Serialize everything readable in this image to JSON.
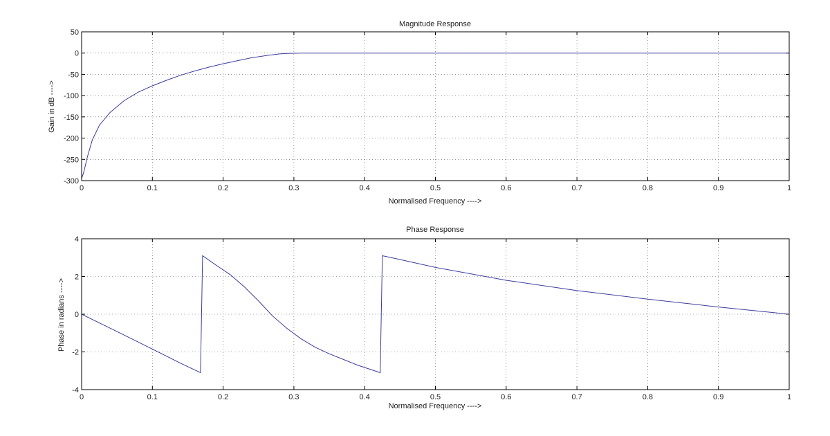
{
  "chart_data": [
    {
      "type": "line",
      "title": "Magnitude Response",
      "xlabel": "Normalised Frequency ---->",
      "ylabel": "Gain in dB ---->",
      "xlim": [
        0,
        1
      ],
      "ylim": [
        -300,
        50
      ],
      "xticks": [
        "0",
        "0.1",
        "0.2",
        "0.3",
        "0.4",
        "0.5",
        "0.6",
        "0.7",
        "0.8",
        "0.9",
        "1"
      ],
      "yticks": [
        "50",
        "0",
        "-50",
        "-100",
        "-150",
        "-200",
        "-250",
        "-300"
      ],
      "grid": true,
      "line_color": "#3b3b9e",
      "series": [
        {
          "x": [
            0,
            0.003,
            0.008,
            0.015,
            0.025,
            0.04,
            0.06,
            0.08,
            0.1,
            0.12,
            0.14,
            0.16,
            0.18,
            0.2,
            0.22,
            0.24,
            0.26,
            0.28,
            0.29,
            0.3,
            0.31,
            0.5,
            0.7,
            1.0
          ],
          "y": [
            -295,
            -280,
            -245,
            -205,
            -170,
            -140,
            -112,
            -92,
            -77,
            -64,
            -52,
            -42,
            -33,
            -25,
            -18,
            -11,
            -6,
            -2,
            -1,
            -0.5,
            0,
            0,
            0,
            0
          ]
        }
      ]
    },
    {
      "type": "line",
      "title": "Phase Response",
      "xlabel": "Normalised Frequency ---->",
      "ylabel": "Phase in radians ---->",
      "xlim": [
        0,
        1
      ],
      "ylim": [
        -4,
        4
      ],
      "xticks": [
        "0",
        "0.1",
        "0.2",
        "0.3",
        "0.4",
        "0.5",
        "0.6",
        "0.7",
        "0.8",
        "0.9",
        "1"
      ],
      "yticks": [
        "4",
        "2",
        "0",
        "-2",
        "-4"
      ],
      "grid": true,
      "line_color": "#3b3b9e",
      "series": [
        {
          "x": [
            0,
            0.05,
            0.1,
            0.14,
            0.168,
            0.171,
            0.19,
            0.21,
            0.23,
            0.25,
            0.27,
            0.29,
            0.31,
            0.33,
            0.35,
            0.37,
            0.39,
            0.41,
            0.422,
            0.425,
            0.45,
            0.5,
            0.6,
            0.7,
            0.8,
            0.9,
            1.0
          ],
          "y": [
            0,
            -0.92,
            -1.85,
            -2.6,
            -3.1,
            3.1,
            2.6,
            2.1,
            1.45,
            0.7,
            -0.1,
            -0.75,
            -1.3,
            -1.75,
            -2.1,
            -2.4,
            -2.7,
            -2.95,
            -3.1,
            3.1,
            2.9,
            2.48,
            1.8,
            1.25,
            0.8,
            0.38,
            0.0
          ]
        }
      ]
    }
  ]
}
